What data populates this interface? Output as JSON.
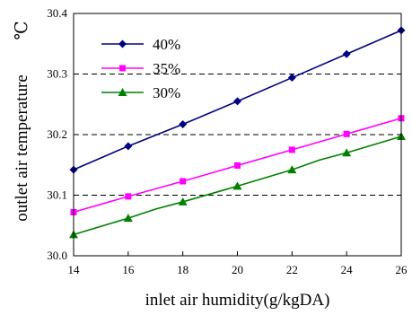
{
  "chart_data": {
    "type": "line",
    "xlabel": "inlet air humidity(g/kgDA)",
    "ylabel": "outlet air temperature",
    "yunit": "℃",
    "xlim": [
      14,
      26
    ],
    "ylim": [
      30.0,
      30.4
    ],
    "xticks": [
      14,
      16,
      18,
      20,
      22,
      24,
      26
    ],
    "xtick_labels": [
      "14",
      "16",
      "18",
      "20",
      "22",
      "24",
      "26"
    ],
    "yticks": [
      30.0,
      30.1,
      30.2,
      30.3,
      30.4
    ],
    "ytick_labels": [
      "30.0",
      "30.1",
      "30.2",
      "30.3",
      "30.4"
    ],
    "grid": "horizontal dashed",
    "legend_position": "top-left",
    "series": [
      {
        "name": "40%",
        "color": "#000080",
        "marker": "diamond",
        "x": [
          14,
          16,
          18,
          20,
          22,
          24,
          26
        ],
        "y": [
          30.142,
          30.181,
          30.217,
          30.255,
          30.294,
          30.333,
          30.372
        ]
      },
      {
        "name": "35%",
        "color": "#ff00ff",
        "marker": "square",
        "x": [
          14,
          16,
          18,
          20,
          22,
          24,
          26
        ],
        "y": [
          30.072,
          30.098,
          30.123,
          30.149,
          30.175,
          30.201,
          30.227
        ]
      },
      {
        "name": "30%",
        "color": "#008000",
        "marker": "triangle",
        "x": [
          14,
          16,
          17,
          18,
          20,
          22,
          23,
          24,
          26
        ],
        "y": [
          30.035,
          30.062,
          30.077,
          30.089,
          30.115,
          30.142,
          30.158,
          30.17,
          30.197
        ]
      }
    ]
  }
}
